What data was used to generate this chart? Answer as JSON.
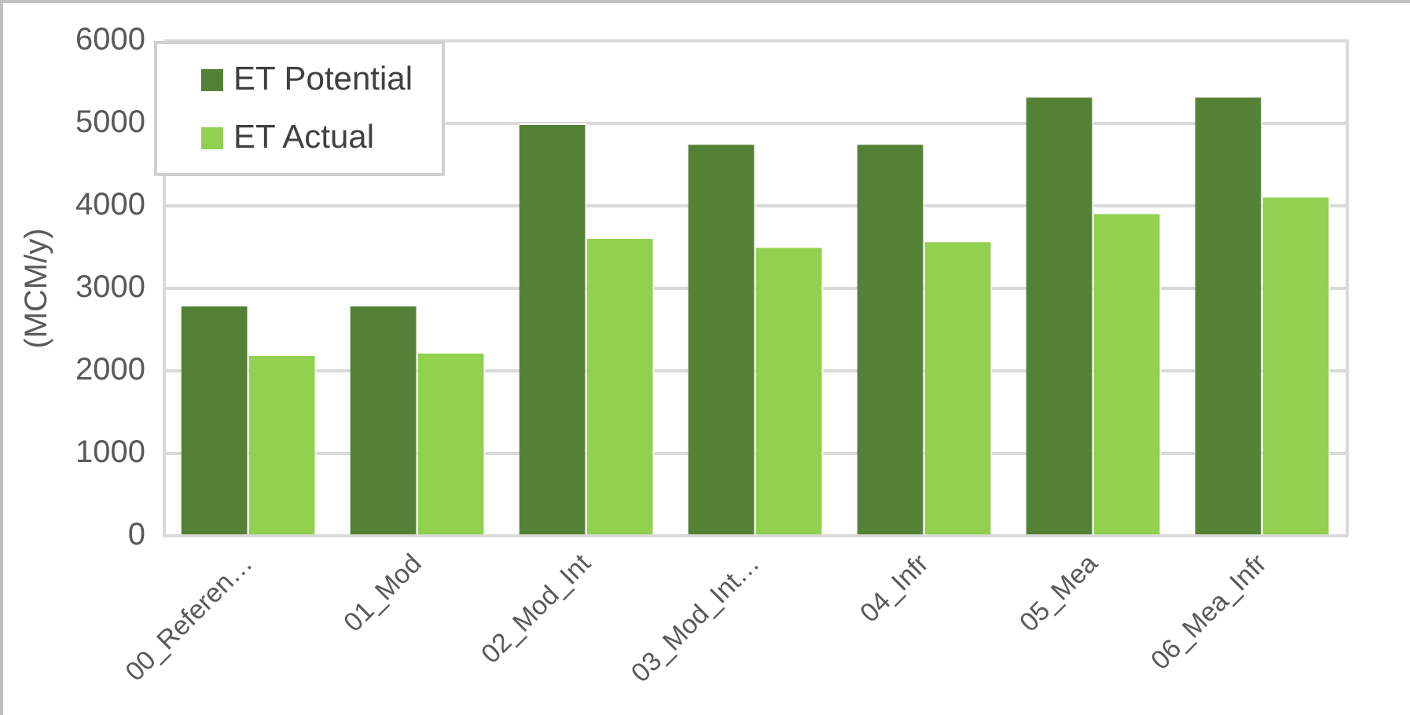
{
  "chart_data": {
    "type": "bar",
    "ylabel": "(MCM/y)",
    "categories": [
      "00_Referen…",
      "01_Mod",
      "02_Mod_Int",
      "03_Mod_Int…",
      "04_Infr",
      "05_Mea",
      "06_Mea_Infr"
    ],
    "series": [
      {
        "name": "ET Potential",
        "color": "#538135",
        "values": [
          2800,
          2800,
          5000,
          4760,
          4760,
          5330,
          5330
        ]
      },
      {
        "name": "ET Actual",
        "color": "#92d050",
        "values": [
          2200,
          2230,
          3620,
          3510,
          3580,
          3920,
          4120
        ]
      }
    ],
    "ylim": [
      0,
      6000
    ],
    "yticks": [
      0,
      1000,
      2000,
      3000,
      4000,
      5000,
      6000
    ],
    "grid": "y",
    "legend": "top left"
  }
}
